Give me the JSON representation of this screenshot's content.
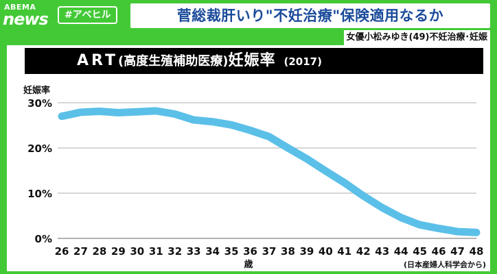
{
  "brand": {
    "line1": "ABEMA",
    "line2": "news"
  },
  "hashtag": "#アベヒル",
  "headline": "菅総裁肝いり\"不妊治療\"保険適用なるか",
  "subheadline": "女優小松みゆき(49)不妊治療･妊娠",
  "colors": {
    "background": "#43c936",
    "headline_text": "#1a4a9a",
    "line": "#5bc0e8",
    "grid": "#c8c8c8"
  },
  "chart_data": {
    "type": "line",
    "title_main": "ART",
    "title_sub": "(高度生殖補助医療)",
    "title_main2": "妊娠率",
    "title_year": "(2017)",
    "ylabel": "妊娠率",
    "xlabel": "歳",
    "source": "(日本産婦人科学会から)",
    "ylim": [
      0,
      30
    ],
    "yticks": [
      "30%",
      "20%",
      "10%",
      "0%"
    ],
    "ytick_values": [
      30,
      20,
      10,
      0
    ],
    "x": [
      26,
      27,
      28,
      29,
      30,
      31,
      32,
      33,
      34,
      35,
      36,
      37,
      38,
      39,
      40,
      41,
      42,
      43,
      44,
      45,
      46,
      47,
      48
    ],
    "series": [
      {
        "values": [
          27.0,
          27.9,
          28.1,
          27.8,
          28.0,
          28.2,
          27.5,
          26.2,
          25.8,
          25.1,
          23.9,
          22.5,
          20.0,
          17.6,
          14.9,
          12.3,
          9.4,
          6.8,
          4.6,
          3.0,
          2.2,
          1.5,
          1.3
        ]
      }
    ],
    "grid": true
  }
}
